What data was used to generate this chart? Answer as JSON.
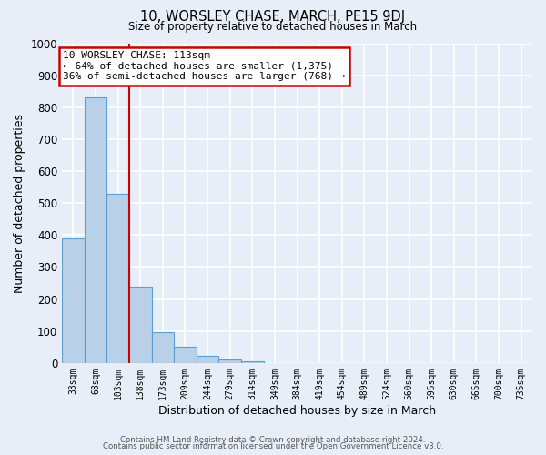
{
  "title": "10, WORSLEY CHASE, MARCH, PE15 9DJ",
  "subtitle": "Size of property relative to detached houses in March",
  "xlabel": "Distribution of detached houses by size in March",
  "ylabel": "Number of detached properties",
  "bar_labels": [
    "33sqm",
    "68sqm",
    "103sqm",
    "138sqm",
    "173sqm",
    "209sqm",
    "244sqm",
    "279sqm",
    "314sqm",
    "349sqm",
    "384sqm",
    "419sqm",
    "454sqm",
    "489sqm",
    "524sqm",
    "560sqm",
    "595sqm",
    "630sqm",
    "665sqm",
    "700sqm",
    "735sqm"
  ],
  "bar_heights": [
    390,
    830,
    530,
    240,
    95,
    50,
    22,
    12,
    5,
    0,
    0,
    0,
    0,
    0,
    0,
    0,
    0,
    0,
    0,
    0,
    0
  ],
  "bar_color": "#b8d0e8",
  "bar_edge_color": "#5a9fd4",
  "vline_x": 2.5,
  "vline_color": "#cc0000",
  "annotation_title": "10 WORSLEY CHASE: 113sqm",
  "annotation_line1": "← 64% of detached houses are smaller (1,375)",
  "annotation_line2": "36% of semi-detached houses are larger (768) →",
  "annotation_box_color": "#ffffff",
  "annotation_box_edge_color": "#cc0000",
  "ylim": [
    0,
    1000
  ],
  "yticks": [
    0,
    100,
    200,
    300,
    400,
    500,
    600,
    700,
    800,
    900,
    1000
  ],
  "background_color": "#e8eef8",
  "grid_color": "#ffffff",
  "footer1": "Contains HM Land Registry data © Crown copyright and database right 2024.",
  "footer2": "Contains public sector information licensed under the Open Government Licence v3.0."
}
